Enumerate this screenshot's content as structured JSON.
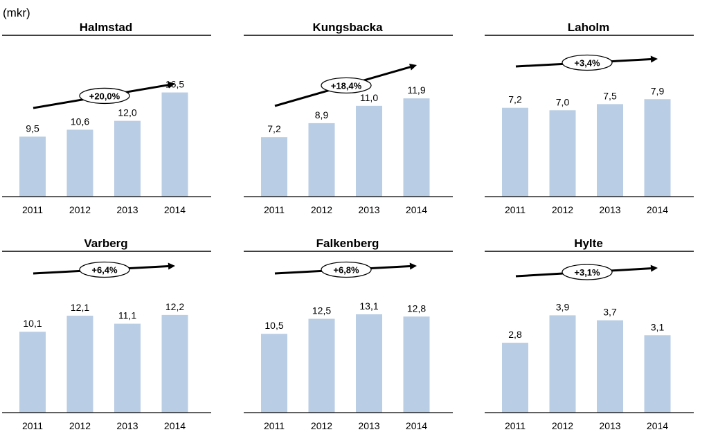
{
  "unit_label": "(mkr)",
  "chart_data": [
    {
      "type": "bar",
      "title": "Halmstad",
      "categories": [
        "2011",
        "2012",
        "2013",
        "2014"
      ],
      "values": [
        9.5,
        10.6,
        12.0,
        16.5
      ],
      "value_labels": [
        "9,5",
        "10,6",
        "12,0",
        "16,5"
      ],
      "growth_label": "+20,0%",
      "ylim": [
        0,
        17
      ],
      "color": "#b9cde5"
    },
    {
      "type": "bar",
      "title": "Kungsbacka",
      "categories": [
        "2011",
        "2012",
        "2013",
        "2014"
      ],
      "values": [
        7.2,
        8.9,
        11.0,
        11.9
      ],
      "value_labels": [
        "7,2",
        "8,9",
        "11,0",
        "11,9"
      ],
      "growth_label": "+18,4%",
      "ylim": [
        0,
        13
      ],
      "color": "#b9cde5"
    },
    {
      "type": "bar",
      "title": "Laholm",
      "categories": [
        "2011",
        "2012",
        "2013",
        "2014"
      ],
      "values": [
        7.2,
        7.0,
        7.5,
        7.9
      ],
      "value_labels": [
        "7,2",
        "7,0",
        "7,5",
        "7,9"
      ],
      "growth_label": "+3,4%",
      "ylim": [
        0,
        8.7
      ],
      "color": "#b9cde5"
    },
    {
      "type": "bar",
      "title": "Varberg",
      "categories": [
        "2011",
        "2012",
        "2013",
        "2014"
      ],
      "values": [
        10.1,
        12.1,
        11.1,
        12.2
      ],
      "value_labels": [
        "10,1",
        "12,1",
        "11,1",
        "12,2"
      ],
      "growth_label": "+6,4%",
      "ylim": [
        0,
        13.4
      ],
      "color": "#b9cde5"
    },
    {
      "type": "bar",
      "title": "Falkenberg",
      "categories": [
        "2011",
        "2012",
        "2013",
        "2014"
      ],
      "values": [
        10.5,
        12.5,
        13.1,
        12.8
      ],
      "value_labels": [
        "10,5",
        "12,5",
        "13,1",
        "12,8"
      ],
      "growth_label": "+6,8%",
      "ylim": [
        0,
        14.3
      ],
      "color": "#b9cde5"
    },
    {
      "type": "bar",
      "title": "Hylte",
      "categories": [
        "2011",
        "2012",
        "2013",
        "2014"
      ],
      "values": [
        2.8,
        3.9,
        3.7,
        3.1
      ],
      "value_labels": [
        "2,8",
        "3,9",
        "3,7",
        "3,1"
      ],
      "growth_label": "+3,1%",
      "ylim": [
        0,
        4.3
      ],
      "color": "#b9cde5"
    }
  ]
}
